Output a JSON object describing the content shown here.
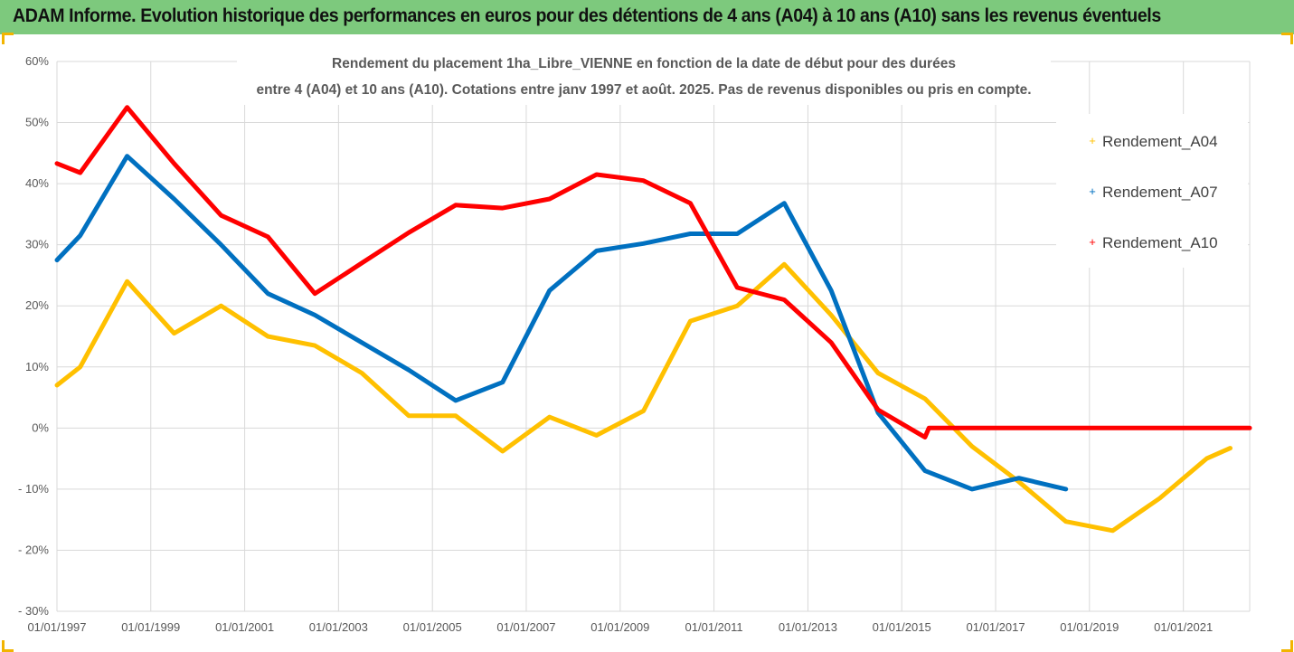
{
  "banner": {
    "text": "ADAM Informe. Evolution historique des performances en euros pour des détentions de 4 ans (A04) à 10 ans (A10) sans les revenus éventuels"
  },
  "chart_data": {
    "type": "line",
    "title_lines": [
      "Rendement du placement 1ha_Libre_VIENNE en fonction de la date de début pour des durées",
      "entre 4 (A04) et 10 ans (A10). Cotations entre janv 1997 et août. 2025. Pas de revenus disponibles ou pris en compte."
    ],
    "xlabel": "",
    "ylabel": "",
    "x_ticks": [
      "01/01/1997",
      "01/01/1999",
      "01/01/2001",
      "01/01/2003",
      "01/01/2005",
      "01/01/2007",
      "01/01/2009",
      "01/01/2011",
      "01/01/2013",
      "01/01/2015",
      "01/01/2017",
      "01/01/2019",
      "01/01/2021"
    ],
    "y_ticks": [
      "60%",
      "50%",
      "40%",
      "30%",
      "20%",
      "10%",
      "0%",
      "- 10%",
      "- 20%",
      "- 30%"
    ],
    "xlim": [
      "1997-01-01",
      "2022-06-01"
    ],
    "ylim": [
      -30,
      60
    ],
    "y_unit": "%",
    "grid": true,
    "legend_position": "right",
    "series": [
      {
        "name": "Rendement_A04",
        "color": "#ffc000",
        "points": [
          [
            "1997-01-01",
            7
          ],
          [
            "1997-07-01",
            10
          ],
          [
            "1998-07-01",
            24
          ],
          [
            "1999-07-01",
            15.5
          ],
          [
            "2000-07-01",
            20
          ],
          [
            "2001-07-01",
            15
          ],
          [
            "2002-07-01",
            13.5
          ],
          [
            "2003-07-01",
            9
          ],
          [
            "2004-07-01",
            2
          ],
          [
            "2005-07-01",
            2
          ],
          [
            "2006-07-01",
            -3.8
          ],
          [
            "2007-07-01",
            1.8
          ],
          [
            "2008-07-01",
            -1.2
          ],
          [
            "2009-07-01",
            2.8
          ],
          [
            "2010-07-01",
            17.5
          ],
          [
            "2011-07-01",
            20
          ],
          [
            "2012-07-01",
            26.8
          ],
          [
            "2013-07-01",
            18.5
          ],
          [
            "2014-07-01",
            9
          ],
          [
            "2015-07-01",
            4.8
          ],
          [
            "2016-07-01",
            -3
          ],
          [
            "2017-07-01",
            -8.8
          ],
          [
            "2018-07-01",
            -15.3
          ],
          [
            "2019-07-01",
            -16.8
          ],
          [
            "2020-07-01",
            -11.5
          ],
          [
            "2021-07-01",
            -5
          ],
          [
            "2022-01-01",
            -3.3
          ]
        ]
      },
      {
        "name": "Rendement_A07",
        "color": "#0070c0",
        "points": [
          [
            "1997-01-01",
            27.5
          ],
          [
            "1997-07-01",
            31.5
          ],
          [
            "1998-07-01",
            44.5
          ],
          [
            "1999-07-01",
            37.5
          ],
          [
            "2000-07-01",
            30
          ],
          [
            "2001-07-01",
            22
          ],
          [
            "2002-07-01",
            18.5
          ],
          [
            "2003-07-01",
            14
          ],
          [
            "2004-07-01",
            9.5
          ],
          [
            "2005-07-01",
            4.5
          ],
          [
            "2006-07-01",
            7.5
          ],
          [
            "2007-07-01",
            22.5
          ],
          [
            "2008-07-01",
            29
          ],
          [
            "2009-07-01",
            30.2
          ],
          [
            "2010-07-01",
            31.8
          ],
          [
            "2011-07-01",
            31.8
          ],
          [
            "2012-07-01",
            36.8
          ],
          [
            "2013-07-01",
            22.5
          ],
          [
            "2014-07-01",
            2.5
          ],
          [
            "2015-07-01",
            -7
          ],
          [
            "2016-07-01",
            -10
          ],
          [
            "2017-07-01",
            -8.2
          ],
          [
            "2018-07-01",
            -10
          ]
        ]
      },
      {
        "name": "Rendement_A10",
        "color": "#ff0000",
        "points": [
          [
            "1997-01-01",
            43.3
          ],
          [
            "1997-07-01",
            41.8
          ],
          [
            "1998-07-01",
            52.5
          ],
          [
            "1999-07-01",
            43.3
          ],
          [
            "2000-07-01",
            34.8
          ],
          [
            "2001-07-01",
            31.3
          ],
          [
            "2002-07-01",
            22
          ],
          [
            "2003-07-01",
            27
          ],
          [
            "2004-07-01",
            32
          ],
          [
            "2005-07-01",
            36.5
          ],
          [
            "2006-07-01",
            36
          ],
          [
            "2007-07-01",
            37.5
          ],
          [
            "2008-07-01",
            41.5
          ],
          [
            "2009-07-01",
            40.5
          ],
          [
            "2010-07-01",
            36.8
          ],
          [
            "2011-07-01",
            23
          ],
          [
            "2012-07-01",
            21
          ],
          [
            "2013-07-01",
            14
          ],
          [
            "2014-07-01",
            3
          ],
          [
            "2015-07-01",
            -1.5
          ],
          [
            "2015-08-01",
            0
          ],
          [
            "2016-07-01",
            0
          ],
          [
            "2017-07-01",
            0
          ],
          [
            "2018-07-01",
            0
          ],
          [
            "2019-07-01",
            0
          ],
          [
            "2020-07-01",
            0
          ],
          [
            "2021-07-01",
            0
          ],
          [
            "2022-06-01",
            0
          ]
        ]
      }
    ]
  }
}
